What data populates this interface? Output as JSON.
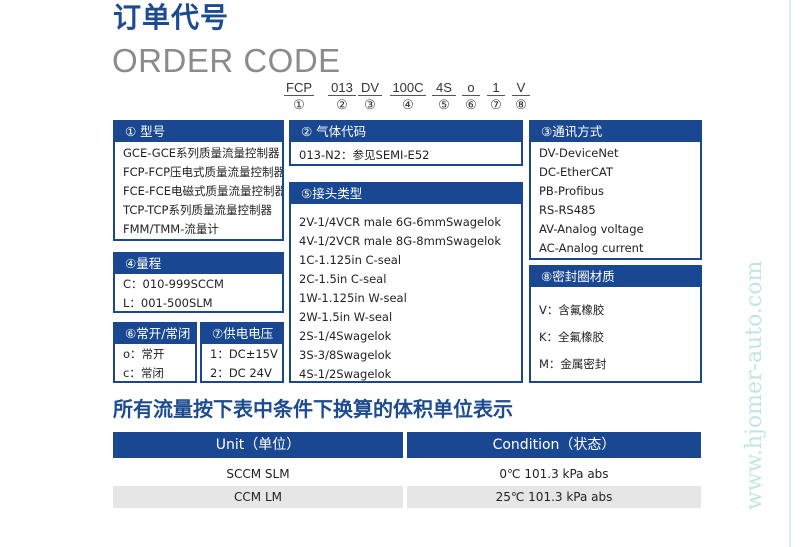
{
  "title": "订单代号",
  "subtitle": "ORDER CODE",
  "code": [
    {
      "c": "FCP",
      "n": "①"
    },
    {
      "c": "013",
      "n": "②"
    },
    {
      "c": "DV",
      "n": "③"
    },
    {
      "c": "100C",
      "n": "④"
    },
    {
      "c": "4S",
      "n": "⑤"
    },
    {
      "c": "o",
      "n": "⑥"
    },
    {
      "c": "1",
      "n": "⑦"
    },
    {
      "c": "V",
      "n": "⑧"
    }
  ],
  "box1": {
    "title": "① 型号",
    "items": [
      "GCE-GCE系列质量流量控制器",
      "FCP-FCP压电式质量流量控制器",
      "FCE-FCE电磁式质量流量控制器",
      "TCP-TCP系列质量流量控制器",
      "FMM/TMM-流量计"
    ]
  },
  "box2": {
    "title": "② 气体代码",
    "items": [
      "013-N2：参见SEMI-E52"
    ]
  },
  "box3": {
    "title": "③通讯方式",
    "items": [
      "DV-DeviceNet",
      "DC-EtherCAT",
      "PB-Profibus",
      "RS-RS485",
      "AV-Analog voltage",
      "AC-Analog current"
    ]
  },
  "box4": {
    "title": "④量程",
    "items": [
      "C：010-999SCCM",
      "L：001-500SLM"
    ]
  },
  "box5": {
    "title": "⑤接头类型",
    "items": [
      "2V-1/4VCR male 6G-6mmSwagelok",
      "4V-1/2VCR male 8G-8mmSwagelok",
      "1C-1.125in C-seal",
      "2C-1.5in C-seal",
      "1W-1.125in W-seal",
      "2W-1.5in W-seal",
      "2S-1/4Swagelok",
      "3S-3/8Swagelok",
      "4S-1/2Swagelok"
    ]
  },
  "box6": {
    "title": "⑥常开/常闭",
    "items": [
      "o：常开",
      "c：常闭"
    ]
  },
  "box7": {
    "title": "⑦供电电压",
    "items": [
      "1：DC±15V",
      "2：DC 24V"
    ]
  },
  "box8": {
    "title": "⑧密封圈材质",
    "items": [
      "V：含氟橡胶",
      "K：全氟橡胶",
      "M：金属密封"
    ]
  },
  "heading": "所有流量按下表中条件下换算的体积单位表示",
  "table": {
    "headers": [
      "Unit（单位）",
      "Condition（状态）"
    ],
    "rows": [
      [
        "SCCM  SLM",
        "0℃ 101.3 kPa abs"
      ],
      [
        "CCM    LM",
        "25℃ 101.3 kPa abs"
      ]
    ]
  },
  "watermark": "www.hjomer-auto.com",
  "colors": {
    "accent": "#1a4792",
    "title": "#1d4b8f",
    "row_alt": "#e6e6e6"
  }
}
